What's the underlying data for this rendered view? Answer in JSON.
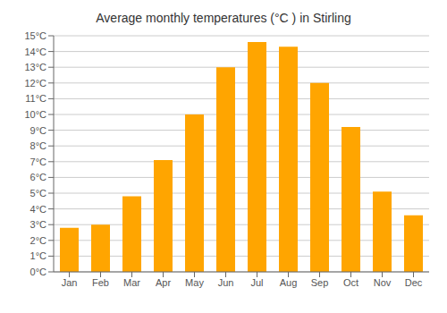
{
  "chart_data": {
    "type": "bar",
    "title": "Average monthly temperatures (°C ) in Stirling",
    "categories": [
      "Jan",
      "Feb",
      "Mar",
      "Apr",
      "May",
      "Jun",
      "Jul",
      "Aug",
      "Sep",
      "Oct",
      "Nov",
      "Dec"
    ],
    "values": [
      2.8,
      3.0,
      4.8,
      7.1,
      10.0,
      13.0,
      14.6,
      14.3,
      12.0,
      9.2,
      5.1,
      3.6
    ],
    "color": "#FFA500",
    "ylim": [
      0,
      15
    ],
    "yticks": [
      {
        "value": 0,
        "label": "0°C"
      },
      {
        "value": 1,
        "label": "1°C"
      },
      {
        "value": 2,
        "label": "2°C"
      },
      {
        "value": 3,
        "label": "3°C"
      },
      {
        "value": 4,
        "label": "4°C"
      },
      {
        "value": 5,
        "label": "5°C"
      },
      {
        "value": 6,
        "label": "6°C"
      },
      {
        "value": 7,
        "label": "7°C"
      },
      {
        "value": 8,
        "label": "8°C"
      },
      {
        "value": 9,
        "label": "9°C"
      },
      {
        "value": 10,
        "label": "10°C"
      },
      {
        "value": 11,
        "label": "11°C"
      },
      {
        "value": 12,
        "label": "12°C"
      },
      {
        "value": 13,
        "label": "13°C"
      },
      {
        "value": 14,
        "label": "14°C"
      },
      {
        "value": 15,
        "label": "15°C"
      }
    ],
    "grid": true
  }
}
